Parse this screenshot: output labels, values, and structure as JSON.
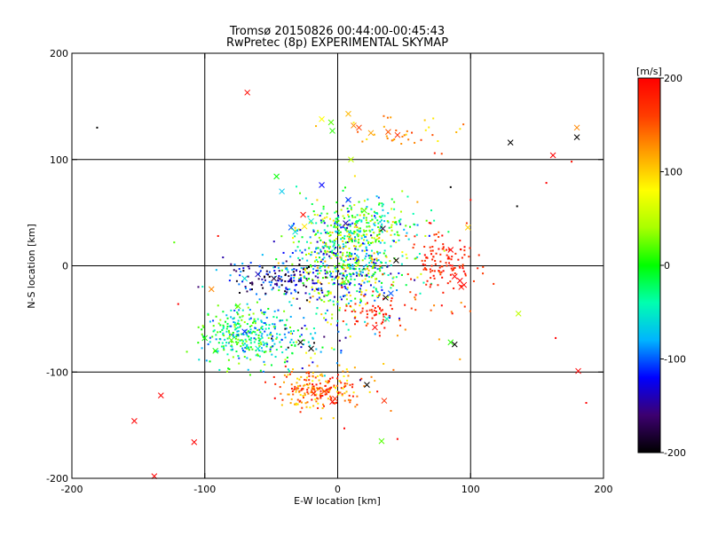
{
  "chart_data": {
    "type": "scatter",
    "title": "Tromsø 20150826 00:44:00-00:45:43",
    "subtitle": "RwPretec (8p) EXPERIMENTAL SKYMAP",
    "xlabel": "E-W location [km]",
    "ylabel": "N-S location [km]",
    "xlim": [
      -200,
      200
    ],
    "ylim": [
      -200,
      200
    ],
    "xticks": [
      -200,
      -100,
      0,
      100,
      200
    ],
    "yticks": [
      -200,
      -100,
      0,
      100,
      200
    ],
    "grid": true,
    "colorbar": {
      "label": "[m/s]",
      "range": [
        -200,
        200
      ],
      "ticks": [
        200,
        100,
        0,
        -100,
        -200
      ],
      "colormap": "rainbow",
      "colors": [
        "#000000",
        "#3d0070",
        "#0000ff",
        "#00b4ff",
        "#00ffb0",
        "#00ff00",
        "#a8ff00",
        "#ffff00",
        "#ffa000",
        "#ff3c00",
        "#ff0000"
      ]
    },
    "marker_types": [
      "dot",
      "x"
    ],
    "series": [
      {
        "marker": "x",
        "points": [
          {
            "x": -68,
            "y": 163,
            "v": 195
          },
          {
            "x": -12,
            "y": 138,
            "v": 80
          },
          {
            "x": -5,
            "y": 135,
            "v": 20
          },
          {
            "x": -4,
            "y": 127,
            "v": 10
          },
          {
            "x": 8,
            "y": 143,
            "v": 110
          },
          {
            "x": 12,
            "y": 132,
            "v": 130
          },
          {
            "x": 16,
            "y": 130,
            "v": 160
          },
          {
            "x": 25,
            "y": 125,
            "v": 120
          },
          {
            "x": 38,
            "y": 126,
            "v": 150
          },
          {
            "x": 45,
            "y": 123,
            "v": 170
          },
          {
            "x": 130,
            "y": 116,
            "v": -200
          },
          {
            "x": 162,
            "y": 104,
            "v": 200
          },
          {
            "x": 180,
            "y": 130,
            "v": 130
          },
          {
            "x": 180,
            "y": 121,
            "v": -200
          },
          {
            "x": -46,
            "y": 84,
            "v": 0
          },
          {
            "x": -42,
            "y": 70,
            "v": -70
          },
          {
            "x": -12,
            "y": 76,
            "v": -120
          },
          {
            "x": 8,
            "y": 62,
            "v": -110
          },
          {
            "x": 10,
            "y": 100,
            "v": 50
          },
          {
            "x": -35,
            "y": 36,
            "v": -100
          },
          {
            "x": -32,
            "y": 32,
            "v": -60
          },
          {
            "x": -25,
            "y": 37,
            "v": 90
          },
          {
            "x": -26,
            "y": 48,
            "v": 190
          },
          {
            "x": -20,
            "y": 42,
            "v": -50
          },
          {
            "x": 6,
            "y": 40,
            "v": -140
          },
          {
            "x": 20,
            "y": 52,
            "v": 20
          },
          {
            "x": 34,
            "y": 35,
            "v": -180
          },
          {
            "x": 44,
            "y": 5,
            "v": -200
          },
          {
            "x": 85,
            "y": 15,
            "v": 200
          },
          {
            "x": 98,
            "y": 36,
            "v": 100
          },
          {
            "x": 88,
            "y": -10,
            "v": 200
          },
          {
            "x": 92,
            "y": -14,
            "v": 200
          },
          {
            "x": 95,
            "y": -18,
            "v": 200
          },
          {
            "x": 93,
            "y": -20,
            "v": 190
          },
          {
            "x": 88,
            "y": -74,
            "v": -200
          },
          {
            "x": 85,
            "y": -72,
            "v": 10
          },
          {
            "x": 136,
            "y": -45,
            "v": 50
          },
          {
            "x": 181,
            "y": -99,
            "v": 200
          },
          {
            "x": -95,
            "y": -22,
            "v": 130
          },
          {
            "x": -70,
            "y": -12,
            "v": -60
          },
          {
            "x": -60,
            "y": -8,
            "v": -140
          },
          {
            "x": -48,
            "y": -12,
            "v": -180
          },
          {
            "x": -75,
            "y": -38,
            "v": 20
          },
          {
            "x": -70,
            "y": -62,
            "v": -110
          },
          {
            "x": -80,
            "y": -70,
            "v": 20
          },
          {
            "x": -92,
            "y": -80,
            "v": 0
          },
          {
            "x": -100,
            "y": -68,
            "v": 0
          },
          {
            "x": -60,
            "y": -78,
            "v": -50
          },
          {
            "x": -28,
            "y": -72,
            "v": -200
          },
          {
            "x": -20,
            "y": -78,
            "v": -200
          },
          {
            "x": 28,
            "y": -58,
            "v": 200
          },
          {
            "x": 37,
            "y": -50,
            "v": -40
          },
          {
            "x": 36,
            "y": -30,
            "v": -200
          },
          {
            "x": 40,
            "y": -26,
            "v": -100
          },
          {
            "x": 5,
            "y": -15,
            "v": 30
          },
          {
            "x": -18,
            "y": -120,
            "v": 180
          },
          {
            "x": -10,
            "y": -118,
            "v": 160
          },
          {
            "x": 22,
            "y": -112,
            "v": -200
          },
          {
            "x": 35,
            "y": -127,
            "v": 170
          },
          {
            "x": -133,
            "y": -122,
            "v": 200
          },
          {
            "x": -153,
            "y": -146,
            "v": 200
          },
          {
            "x": -108,
            "y": -166,
            "v": 200
          },
          {
            "x": -138,
            "y": -198,
            "v": 200
          },
          {
            "x": 33,
            "y": -165,
            "v": 20
          },
          {
            "x": -4,
            "y": -128,
            "v": 200
          },
          {
            "x": -2,
            "y": -125,
            "v": 170
          }
        ]
      }
    ],
    "clusters": [
      {
        "cx": 5,
        "cy": 3,
        "sx": 22,
        "sy": 26,
        "n": 700,
        "vmin": -150,
        "vmax": 120
      },
      {
        "cx": 18,
        "cy": 40,
        "sx": 22,
        "sy": 12,
        "n": 180,
        "vmin": -80,
        "vmax": 60
      },
      {
        "cx": -68,
        "cy": -66,
        "sx": 17,
        "sy": 13,
        "n": 320,
        "vmin": -110,
        "vmax": 40
      },
      {
        "cx": -14,
        "cy": -116,
        "sx": 17,
        "sy": 9,
        "n": 220,
        "vmin": 80,
        "vmax": 200
      },
      {
        "cx": -42,
        "cy": -12,
        "sx": 22,
        "sy": 9,
        "n": 160,
        "vmin": -200,
        "vmax": -70
      },
      {
        "cx": 80,
        "cy": 2,
        "sx": 13,
        "sy": 14,
        "n": 110,
        "vmin": 160,
        "vmax": 200
      },
      {
        "cx": 25,
        "cy": -42,
        "sx": 9,
        "sy": 9,
        "n": 55,
        "vmin": 160,
        "vmax": 200
      },
      {
        "cx": 40,
        "cy": 125,
        "sx": 26,
        "sy": 7,
        "n": 35,
        "vmin": 80,
        "vmax": 160
      },
      {
        "cx": -30,
        "cy": -80,
        "sx": 20,
        "sy": 14,
        "n": 50,
        "vmin": -200,
        "vmax": 80
      },
      {
        "cx": 60,
        "cy": -25,
        "sx": 20,
        "sy": 28,
        "n": 35,
        "vmin": 120,
        "vmax": 200
      }
    ],
    "scattered_dots": [
      {
        "x": -181,
        "y": 130,
        "v": -200
      },
      {
        "x": -123,
        "y": 22,
        "v": 20
      },
      {
        "x": -90,
        "y": 28,
        "v": 190
      },
      {
        "x": -120,
        "y": -36,
        "v": 200
      },
      {
        "x": 85,
        "y": 74,
        "v": -200
      },
      {
        "x": 100,
        "y": 62,
        "v": 190
      },
      {
        "x": 135,
        "y": 56,
        "v": -200
      },
      {
        "x": 157,
        "y": 78,
        "v": 200
      },
      {
        "x": 176,
        "y": 98,
        "v": 190
      },
      {
        "x": 73,
        "y": 106,
        "v": 180
      },
      {
        "x": 92,
        "y": -88,
        "v": 120
      },
      {
        "x": 164,
        "y": -68,
        "v": 200
      },
      {
        "x": 187,
        "y": -129,
        "v": 200
      },
      {
        "x": 45,
        "y": -163,
        "v": 200
      },
      {
        "x": 5,
        "y": -153,
        "v": 200
      },
      {
        "x": 42,
        "y": -98,
        "v": 140
      },
      {
        "x": 60,
        "y": 60,
        "v": 120
      },
      {
        "x": 70,
        "y": 40,
        "v": 200
      }
    ]
  }
}
